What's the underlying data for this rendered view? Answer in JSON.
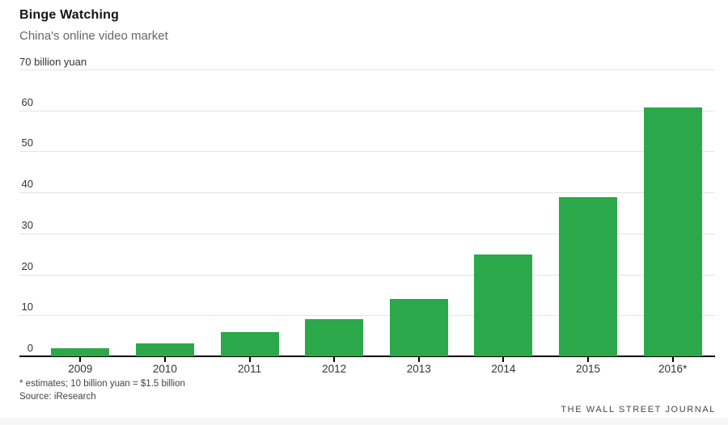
{
  "header": {
    "title": "Binge Watching",
    "subtitle": "China's online video market"
  },
  "chart_data": {
    "type": "bar",
    "title": "Binge Watching",
    "subtitle": "China's online video market",
    "unit_label": "70 billion yuan",
    "categories": [
      "2009",
      "2010",
      "2011",
      "2012",
      "2013",
      "2014",
      "2015",
      "2016*"
    ],
    "values": [
      2.0,
      3.1,
      5.9,
      9.1,
      14.0,
      24.9,
      38.9,
      60.8
    ],
    "xlabel": "",
    "ylabel": "billion yuan",
    "ylim": [
      0,
      70
    ],
    "y_ticks": [
      0,
      10,
      20,
      30,
      40,
      50,
      60,
      70
    ],
    "grid": true,
    "legend": "none",
    "bar_color": "#2aa84a",
    "gridline_color": "#e4e4e4",
    "axis_color": "#000000"
  },
  "footer": {
    "note": "* estimates; 10 billion yuan = $1.5 billion",
    "source": "Source: iResearch",
    "brand": "THE WALL STREET JOURNAL"
  }
}
